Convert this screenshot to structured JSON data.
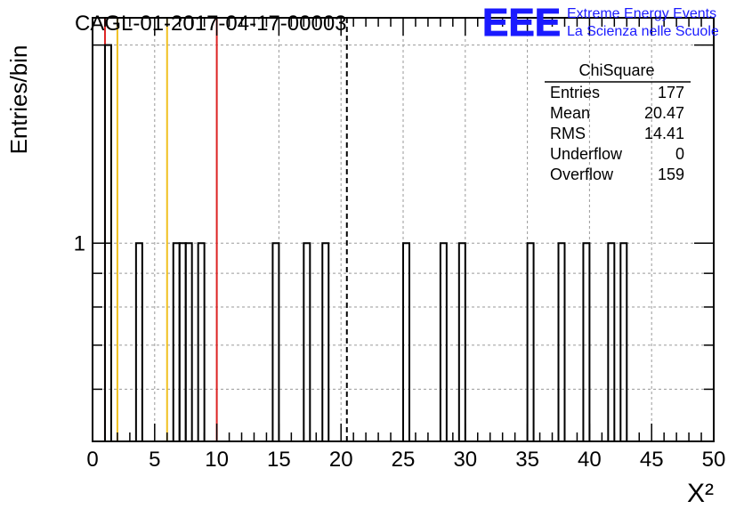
{
  "header": {
    "run_title": "CAGL-01-2017-04-17-00003",
    "logo_text": "EEE",
    "logo_line1": "Extreme Energy Events",
    "logo_line2": "La Scienza nelle Scuole",
    "brand_color": "#1a1aff"
  },
  "stats_box": {
    "title": "ChiSquare",
    "rows": [
      {
        "label": "Entries",
        "value": "177"
      },
      {
        "label": "Mean",
        "value": "20.47"
      },
      {
        "label": "RMS",
        "value": "14.41"
      },
      {
        "label": "Underflow",
        "value": "0"
      },
      {
        "label": "Overflow",
        "value": "159"
      }
    ]
  },
  "chart_data": {
    "type": "bar",
    "histogram": true,
    "ylabel": "Entries/bin",
    "xlabel": "X²",
    "xlim": [
      0,
      50
    ],
    "ylim": [
      0.5,
      2.2
    ],
    "y_scale": "log",
    "grid": true,
    "x_ticks": [
      "0",
      "5",
      "10",
      "15",
      "20",
      "25",
      "30",
      "35",
      "40",
      "45",
      "50"
    ],
    "y_tick_labels": [
      {
        "value": 1,
        "label": "1"
      }
    ],
    "bin_width": 0.5,
    "bins": [
      {
        "x0": 1.0,
        "count": 2
      },
      {
        "x0": 3.5,
        "count": 1
      },
      {
        "x0": 6.5,
        "count": 1
      },
      {
        "x0": 7.0,
        "count": 1
      },
      {
        "x0": 7.5,
        "count": 1
      },
      {
        "x0": 8.5,
        "count": 1
      },
      {
        "x0": 14.5,
        "count": 1
      },
      {
        "x0": 17.0,
        "count": 1
      },
      {
        "x0": 18.5,
        "count": 1
      },
      {
        "x0": 25.0,
        "count": 1
      },
      {
        "x0": 28.0,
        "count": 1
      },
      {
        "x0": 29.5,
        "count": 1
      },
      {
        "x0": 35.0,
        "count": 1
      },
      {
        "x0": 37.5,
        "count": 1
      },
      {
        "x0": 39.5,
        "count": 1
      },
      {
        "x0": 41.5,
        "count": 1
      },
      {
        "x0": 42.5,
        "count": 1
      }
    ],
    "reference_lines": [
      {
        "x": 1,
        "color": "#dd2222",
        "style": "solid"
      },
      {
        "x": 2,
        "color": "#f0c020",
        "style": "solid"
      },
      {
        "x": 6,
        "color": "#f0c020",
        "style": "solid"
      },
      {
        "x": 10,
        "color": "#dd2222",
        "style": "solid"
      },
      {
        "x": 20.47,
        "color": "#000000",
        "style": "dashed"
      }
    ]
  }
}
